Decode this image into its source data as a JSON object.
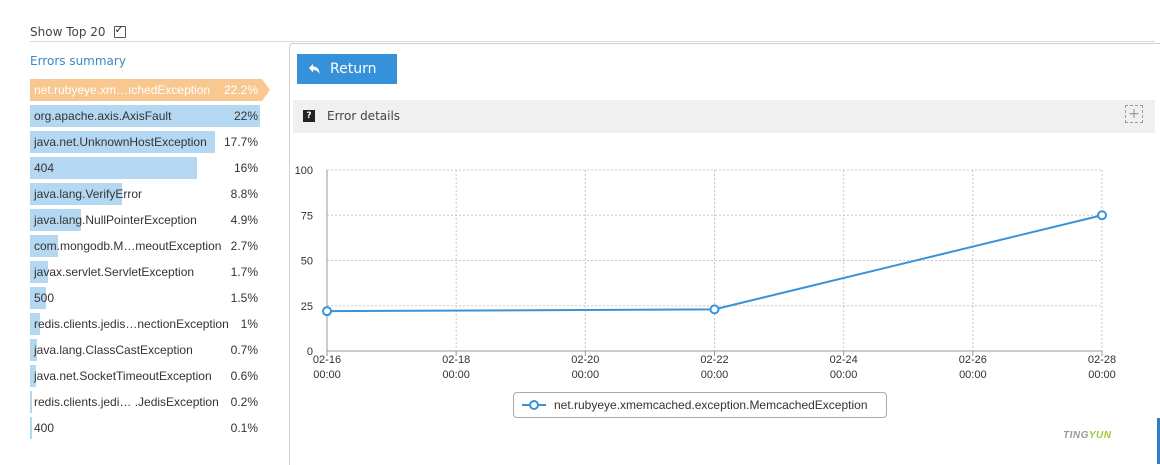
{
  "top": {
    "show_top_label": "Show Top 20",
    "show_top_checked": true
  },
  "summary": {
    "title": "Errors summary",
    "items": [
      {
        "name": "net.rubyeye.xm…ıchedException",
        "pct_label": "22.2%",
        "value": 22.2,
        "selected": true
      },
      {
        "name": "org.apache.axis.AxisFault",
        "pct_label": "22%",
        "value": 22
      },
      {
        "name": "java.net.UnknownHostException",
        "pct_label": "17.7%",
        "value": 17.7
      },
      {
        "name": "404",
        "pct_label": "16%",
        "value": 16
      },
      {
        "name": "java.lang.VerifyError",
        "pct_label": "8.8%",
        "value": 8.8
      },
      {
        "name": "java.lang.NullPointerException",
        "pct_label": "4.9%",
        "value": 4.9
      },
      {
        "name": "com.mongodb.M…meoutException",
        "pct_label": "2.7%",
        "value": 2.7
      },
      {
        "name": "javax.servlet.ServletException",
        "pct_label": "1.7%",
        "value": 1.7
      },
      {
        "name": "500",
        "pct_label": "1.5%",
        "value": 1.5
      },
      {
        "name": "redis.clients.jedis…nectionException",
        "pct_label": "1%",
        "value": 1
      },
      {
        "name": "java.lang.ClassCastException",
        "pct_label": "0.7%",
        "value": 0.7
      },
      {
        "name": "java.net.SocketTimeoutException",
        "pct_label": "0.6%",
        "value": 0.6
      },
      {
        "name": "redis.clients.jedi… .JedisException",
        "pct_label": "0.2%",
        "value": 0.2
      },
      {
        "name": "400",
        "pct_label": "0.1%",
        "value": 0.1
      }
    ]
  },
  "panel": {
    "return_label": "Return",
    "details_title": "Error details",
    "help_icon": "help-icon",
    "expand_icon": "plus-icon"
  },
  "chart_data": {
    "type": "line",
    "x_ticks": [
      {
        "date": "02-16",
        "time": "00:00"
      },
      {
        "date": "02-18",
        "time": "00:00"
      },
      {
        "date": "02-20",
        "time": "00:00"
      },
      {
        "date": "02-22",
        "time": "00:00"
      },
      {
        "date": "02-24",
        "time": "00:00"
      },
      {
        "date": "02-26",
        "time": "00:00"
      },
      {
        "date": "02-28",
        "time": "00:00"
      }
    ],
    "y_ticks": [
      "0",
      "25",
      "50",
      "75",
      "100"
    ],
    "ylim": [
      0,
      100
    ],
    "grid": true,
    "series": [
      {
        "name": "net.rubyeye.xmemcached.exception.MemcachedException",
        "color": "#3a93d6",
        "points": [
          {
            "x": "02-16",
            "y": 22
          },
          {
            "x": "02-22",
            "y": 23
          },
          {
            "x": "02-28",
            "y": 75
          }
        ]
      }
    ],
    "legend": "bottom"
  },
  "brand": {
    "part1": "TING",
    "part2": "YUN"
  },
  "colors": {
    "accent": "#3591da",
    "selected": "#f9c891",
    "bar": "#b5d8f2"
  }
}
